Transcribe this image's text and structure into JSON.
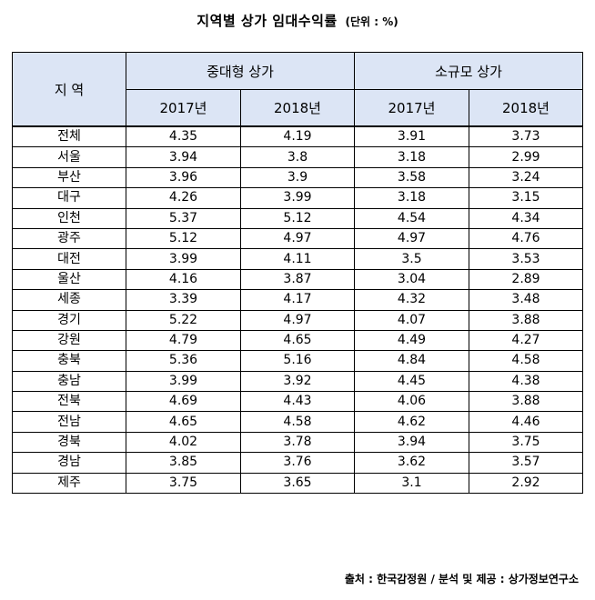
{
  "title": {
    "main": "지역별 상가 임대수익률",
    "unit": "(단위 : %)"
  },
  "header": {
    "region": "지 역",
    "group1": "중대형 상가",
    "group2": "소규모 상가",
    "years": [
      "2017년",
      "2018년",
      "2017년",
      "2018년"
    ]
  },
  "rows": [
    [
      "전체",
      "4.35",
      "4.19",
      "3.91",
      "3.73"
    ],
    [
      "서울",
      "3.94",
      "3.8",
      "3.18",
      "2.99"
    ],
    [
      "부산",
      "3.96",
      "3.9",
      "3.58",
      "3.24"
    ],
    [
      "대구",
      "4.26",
      "3.99",
      "3.18",
      "3.15"
    ],
    [
      "인천",
      "5.37",
      "5.12",
      "4.54",
      "4.34"
    ],
    [
      "광주",
      "5.12",
      "4.97",
      "4.97",
      "4.76"
    ],
    [
      "대전",
      "3.99",
      "4.11",
      "3.5",
      "3.53"
    ],
    [
      "울산",
      "4.16",
      "3.87",
      "3.04",
      "2.89"
    ],
    [
      "세종",
      "3.39",
      "4.17",
      "4.32",
      "3.48"
    ],
    [
      "경기",
      "5.22",
      "4.97",
      "4.07",
      "3.88"
    ],
    [
      "강원",
      "4.79",
      "4.65",
      "4.49",
      "4.27"
    ],
    [
      "충북",
      "5.36",
      "5.16",
      "4.84",
      "4.58"
    ],
    [
      "충남",
      "3.99",
      "3.92",
      "4.45",
      "4.38"
    ],
    [
      "전북",
      "4.69",
      "4.43",
      "4.06",
      "3.88"
    ],
    [
      "전남",
      "4.65",
      "4.58",
      "4.62",
      "4.46"
    ],
    [
      "경북",
      "4.02",
      "3.78",
      "3.94",
      "3.75"
    ],
    [
      "경남",
      "3.85",
      "3.76",
      "3.62",
      "3.57"
    ],
    [
      "제주",
      "3.75",
      "3.65",
      "3.1",
      "2.92"
    ]
  ],
  "source": "출처 : 한국감정원 / 분석 및 제공 : 상가정보연구소",
  "colors": {
    "header_bg": "#dce5f5",
    "border": "#000000"
  }
}
